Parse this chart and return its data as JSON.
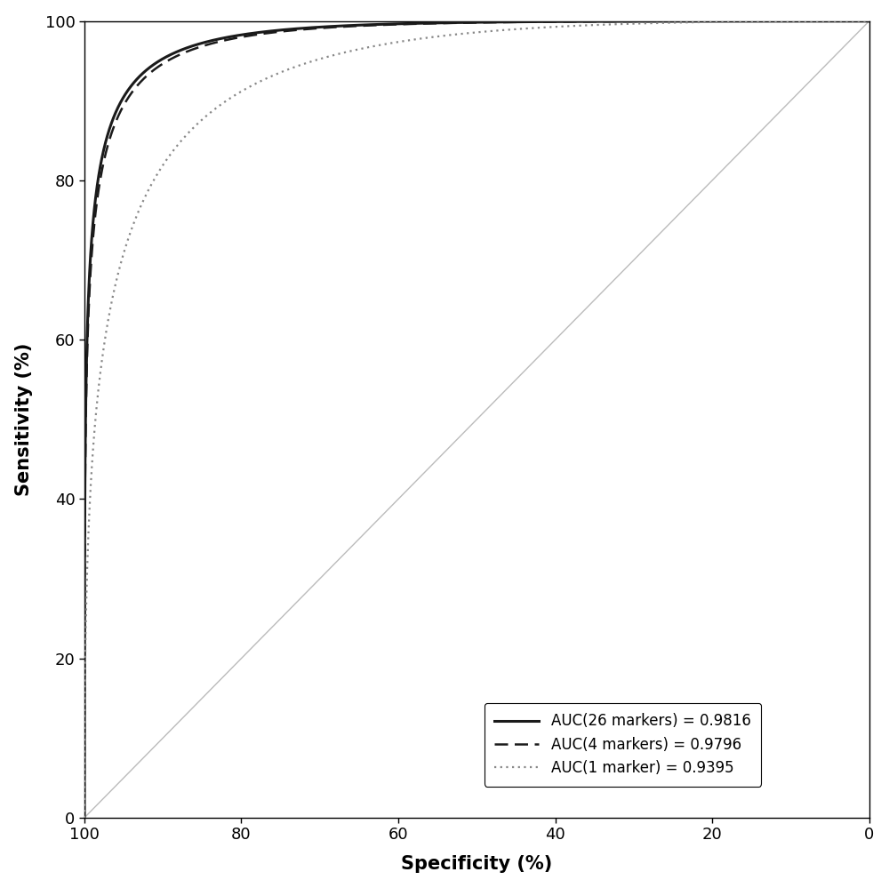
{
  "title": "",
  "xlabel": "Specificity (%)",
  "ylabel": "Sensitivity (%)",
  "legend_entries": [
    {
      "label": "AUC(26 markers) = 0.9816",
      "linestyle": "solid",
      "color": "#1a1a1a",
      "linewidth": 2.2
    },
    {
      "label": "AUC(4 markers) = 0.9796",
      "linestyle": "dashed",
      "color": "#1a1a1a",
      "linewidth": 1.8
    },
    {
      "label": "AUC(1 marker) = 0.9395",
      "linestyle": "dotted",
      "color": "#888888",
      "linewidth": 1.6
    }
  ],
  "diagonal_color": "#bbbbbb",
  "background_color": "#ffffff",
  "auc_26": 0.9816,
  "auc_4": 0.9796,
  "auc_1": 0.9395,
  "xlim": [
    100,
    0
  ],
  "ylim": [
    0,
    100
  ],
  "xticks": [
    100,
    80,
    60,
    40,
    20,
    0
  ],
  "yticks": [
    0,
    20,
    40,
    60,
    80,
    100
  ]
}
